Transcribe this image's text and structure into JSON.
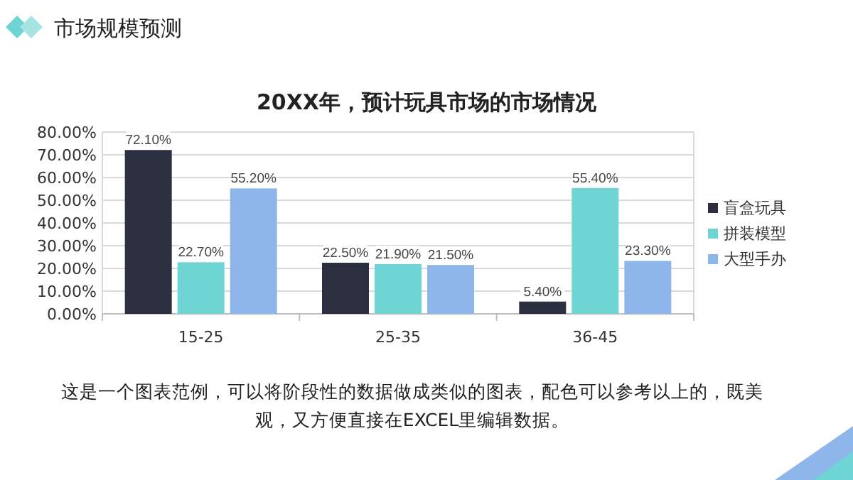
{
  "chart_data": {
    "type": "bar",
    "title": "20XX年，预计玩具市场的市场情况",
    "categories": [
      "15-25",
      "25-35",
      "36-45"
    ],
    "series": [
      {
        "name": "盲盒玩具",
        "color": "#2b2f40",
        "values": [
          72.1,
          22.5,
          5.4
        ],
        "value_labels": [
          "72.10%",
          "22.50%",
          "5.40%"
        ]
      },
      {
        "name": "拼装模型",
        "color": "#6fd4d4",
        "values": [
          22.7,
          21.9,
          55.4
        ],
        "value_labels": [
          "22.70%",
          "21.90%",
          "55.40%"
        ]
      },
      {
        "name": "大型手办",
        "color": "#8fb6ea",
        "values": [
          55.2,
          21.5,
          23.3
        ],
        "value_labels": [
          "55.20%",
          "21.50%",
          "23.30%"
        ]
      }
    ],
    "ylim": [
      0,
      80
    ],
    "yticks": [
      {
        "value": 0,
        "label": "0.00%"
      },
      {
        "value": 10,
        "label": "10.00%"
      },
      {
        "value": 20,
        "label": "20.00%"
      },
      {
        "value": 30,
        "label": "30.00%"
      },
      {
        "value": 40,
        "label": "40.00%"
      },
      {
        "value": 50,
        "label": "50.00%"
      },
      {
        "value": 60,
        "label": "60.00%"
      },
      {
        "value": 70,
        "label": "70.00%"
      },
      {
        "value": 80,
        "label": "80.00%"
      }
    ],
    "grid": "y",
    "legend": "right",
    "annotations": [
      "市场规模预测",
      "这是一个图表范例，可以将阶段性的数据做成类似的图表，配色可以参考以上的，既美观，又方便直接在EXCEL里编辑数据。"
    ]
  }
}
